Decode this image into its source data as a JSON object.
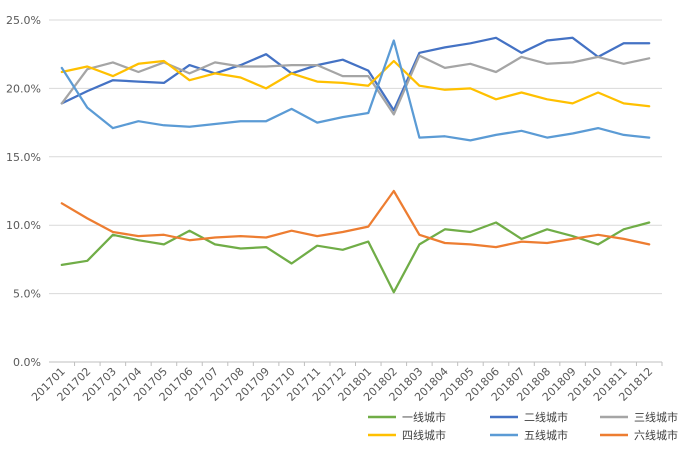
{
  "chart_data": {
    "type": "line",
    "title": "",
    "xlabel": "",
    "ylabel": "",
    "ylim": [
      0,
      25
    ],
    "y_ticks": [
      "0.0%",
      "5.0%",
      "10.0%",
      "15.0%",
      "20.0%",
      "25.0%"
    ],
    "grid": "horizontal",
    "legend_position": "bottom-right",
    "categories": [
      "201701",
      "201702",
      "201703",
      "201704",
      "201705",
      "201706",
      "201707",
      "201708",
      "201709",
      "201710",
      "201711",
      "201712",
      "201801",
      "201802",
      "201803",
      "201804",
      "201805",
      "201806",
      "201807",
      "201808",
      "201809",
      "201810",
      "201811",
      "201812"
    ],
    "series": [
      {
        "name": "一线城市",
        "color": "#70ad47",
        "values": [
          7.1,
          7.4,
          9.3,
          8.9,
          8.6,
          9.6,
          8.6,
          8.3,
          8.4,
          7.2,
          8.5,
          8.2,
          8.8,
          5.1,
          8.6,
          9.7,
          9.5,
          10.2,
          9.0,
          9.7,
          9.2,
          8.6,
          9.7,
          10.2
        ]
      },
      {
        "name": "二线城市",
        "color": "#4472c4",
        "values": [
          18.9,
          19.8,
          20.6,
          20.5,
          20.4,
          21.7,
          21.1,
          21.7,
          22.5,
          21.1,
          21.7,
          22.1,
          21.3,
          18.4,
          22.6,
          23.0,
          23.3,
          23.7,
          22.6,
          23.5,
          23.7,
          22.3,
          23.3,
          23.3
        ]
      },
      {
        "name": "三线城市",
        "color": "#a5a5a5",
        "values": [
          18.9,
          21.4,
          21.9,
          21.2,
          21.9,
          21.1,
          21.9,
          21.6,
          21.6,
          21.7,
          21.7,
          20.9,
          20.9,
          18.1,
          22.4,
          21.5,
          21.8,
          21.2,
          22.3,
          21.8,
          21.9,
          22.3,
          21.8,
          22.2
        ]
      },
      {
        "name": "四线城市",
        "color": "#ffc000",
        "values": [
          21.2,
          21.6,
          20.9,
          21.8,
          22.0,
          20.6,
          21.1,
          20.8,
          20.0,
          21.1,
          20.5,
          20.4,
          20.2,
          22.0,
          20.2,
          19.9,
          20.0,
          19.2,
          19.7,
          19.2,
          18.9,
          19.7,
          18.9,
          18.7
        ]
      },
      {
        "name": "五线城市",
        "color": "#5b9bd5",
        "values": [
          21.5,
          18.6,
          17.1,
          17.6,
          17.3,
          17.2,
          17.4,
          17.6,
          17.6,
          18.5,
          17.5,
          17.9,
          18.2,
          23.5,
          16.4,
          16.5,
          16.2,
          16.6,
          16.9,
          16.4,
          16.7,
          17.1,
          16.6,
          16.4
        ]
      },
      {
        "name": "六线城市",
        "color": "#ed7d31",
        "values": [
          11.6,
          10.5,
          9.5,
          9.2,
          9.3,
          8.9,
          9.1,
          9.2,
          9.1,
          9.6,
          9.2,
          9.5,
          9.9,
          12.5,
          9.3,
          8.7,
          8.6,
          8.4,
          8.8,
          8.7,
          9.0,
          9.3,
          9.0,
          8.6
        ]
      }
    ]
  }
}
